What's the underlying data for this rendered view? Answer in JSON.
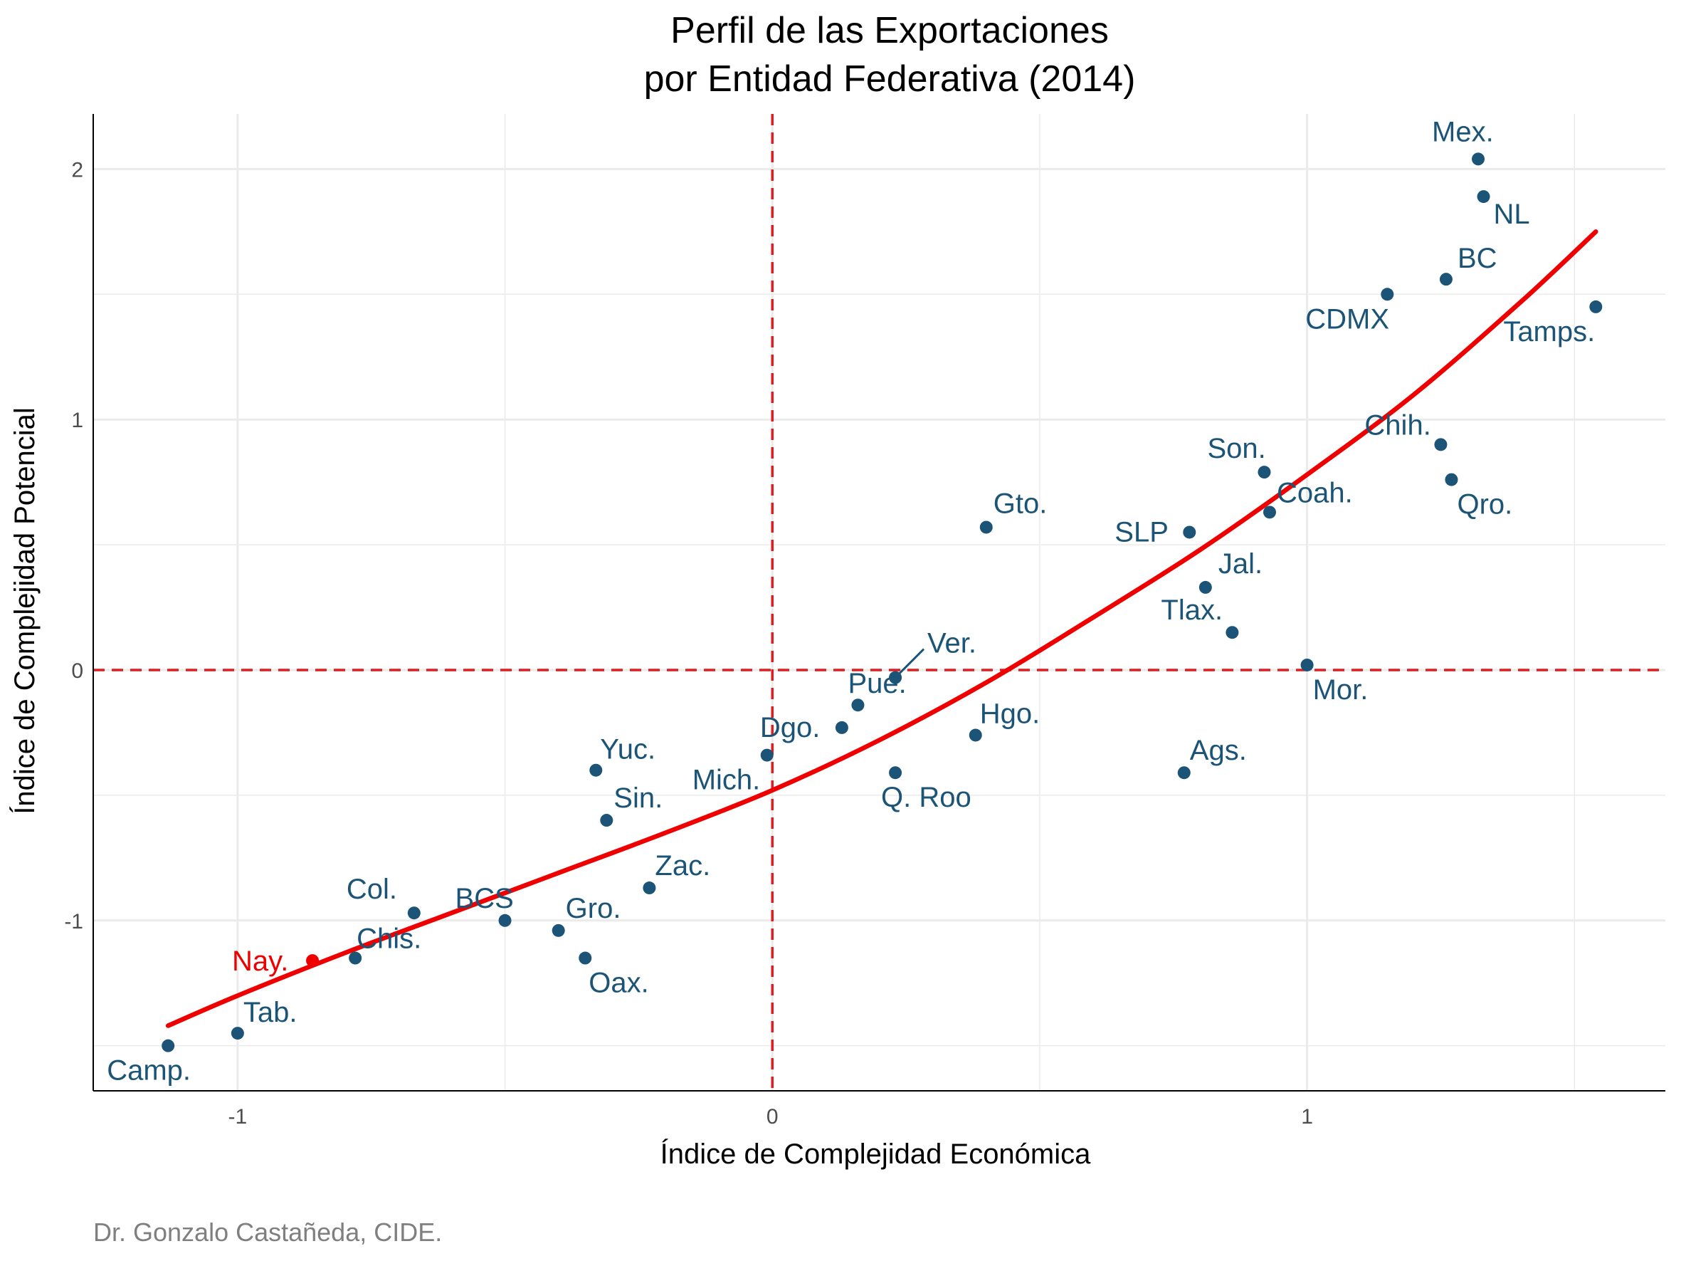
{
  "chart_data": {
    "type": "scatter",
    "title": "Perfil de las Exportaciones",
    "subtitle": "por Entidad Federativa (2014)",
    "xlabel": "Índice de Complejidad Económica",
    "ylabel": "Índice de Complejidad Potencial",
    "caption": "Dr. Gonzalo Castañeda, CIDE.",
    "xlim": [
      -1.27,
      1.67
    ],
    "ylim": [
      -1.68,
      2.22
    ],
    "x_ticks": [
      -1,
      0,
      1
    ],
    "x_tick_labels": [
      "-1",
      "0",
      "1"
    ],
    "y_ticks": [
      -1,
      0,
      1,
      2
    ],
    "y_tick_labels": [
      "-1",
      "0",
      "1",
      "2"
    ],
    "grid": true,
    "reference_lines": {
      "x": 0,
      "y": 0,
      "color": "#e41a1c",
      "style": "dashed"
    },
    "colors": {
      "points": "#1b5476",
      "highlight": "#ee0000",
      "fit": "#ee0000",
      "grid": "#ebebeb"
    },
    "fit_curve": {
      "x": [
        -1.13,
        -1.0,
        -0.8,
        -0.6,
        -0.4,
        -0.2,
        0.0,
        0.2,
        0.4,
        0.6,
        0.8,
        1.0,
        1.2,
        1.4,
        1.54
      ],
      "y": [
        -1.42,
        -1.3,
        -1.13,
        -0.97,
        -0.81,
        -0.65,
        -0.48,
        -0.28,
        -0.05,
        0.21,
        0.48,
        0.78,
        1.1,
        1.47,
        1.75
      ]
    },
    "points": [
      {
        "label": "Mex.",
        "x": 1.32,
        "y": 2.04,
        "highlight": false
      },
      {
        "label": "NL",
        "x": 1.33,
        "y": 1.89,
        "highlight": false
      },
      {
        "label": "BC",
        "x": 1.26,
        "y": 1.56,
        "highlight": false
      },
      {
        "label": "CDMX",
        "x": 1.15,
        "y": 1.5,
        "highlight": false
      },
      {
        "label": "Tamps.",
        "x": 1.54,
        "y": 1.45,
        "highlight": false
      },
      {
        "label": "Chih.",
        "x": 1.25,
        "y": 0.9,
        "highlight": false
      },
      {
        "label": "Qro.",
        "x": 1.27,
        "y": 0.76,
        "highlight": false
      },
      {
        "label": "Son.",
        "x": 0.92,
        "y": 0.79,
        "highlight": false
      },
      {
        "label": "Coah.",
        "x": 0.93,
        "y": 0.63,
        "highlight": false
      },
      {
        "label": "SLP",
        "x": 0.78,
        "y": 0.55,
        "highlight": false
      },
      {
        "label": "Gto.",
        "x": 0.4,
        "y": 0.57,
        "highlight": false
      },
      {
        "label": "Jal.",
        "x": 0.81,
        "y": 0.33,
        "highlight": false
      },
      {
        "label": "Tlax.",
        "x": 0.86,
        "y": 0.15,
        "highlight": false
      },
      {
        "label": "Mor.",
        "x": 1.0,
        "y": 0.02,
        "highlight": false
      },
      {
        "label": "Ver.",
        "x": 0.23,
        "y": -0.03,
        "highlight": false
      },
      {
        "label": "Pue.",
        "x": 0.16,
        "y": -0.14,
        "highlight": false
      },
      {
        "label": "Dgo.",
        "x": 0.13,
        "y": -0.23,
        "highlight": false
      },
      {
        "label": "Hgo.",
        "x": 0.38,
        "y": -0.26,
        "highlight": false
      },
      {
        "label": "Mich.",
        "x": -0.01,
        "y": -0.34,
        "highlight": false
      },
      {
        "label": "Q. Roo",
        "x": 0.23,
        "y": -0.41,
        "highlight": false
      },
      {
        "label": "Ags.",
        "x": 0.77,
        "y": -0.41,
        "highlight": false
      },
      {
        "label": "Yuc.",
        "x": -0.33,
        "y": -0.4,
        "highlight": false
      },
      {
        "label": "Sin.",
        "x": -0.31,
        "y": -0.6,
        "highlight": false
      },
      {
        "label": "Zac.",
        "x": -0.23,
        "y": -0.87,
        "highlight": false
      },
      {
        "label": "Col.",
        "x": -0.67,
        "y": -0.97,
        "highlight": false
      },
      {
        "label": "BCS",
        "x": -0.5,
        "y": -1.0,
        "highlight": false
      },
      {
        "label": "Gro.",
        "x": -0.4,
        "y": -1.04,
        "highlight": false
      },
      {
        "label": "Oax.",
        "x": -0.35,
        "y": -1.15,
        "highlight": false
      },
      {
        "label": "Chis.",
        "x": -0.78,
        "y": -1.15,
        "highlight": false
      },
      {
        "label": "Nay.",
        "x": -0.86,
        "y": -1.16,
        "highlight": true
      },
      {
        "label": "Tab.",
        "x": -1.0,
        "y": -1.45,
        "highlight": false
      },
      {
        "label": "Camp.",
        "x": -1.13,
        "y": -1.5,
        "highlight": false
      }
    ]
  }
}
